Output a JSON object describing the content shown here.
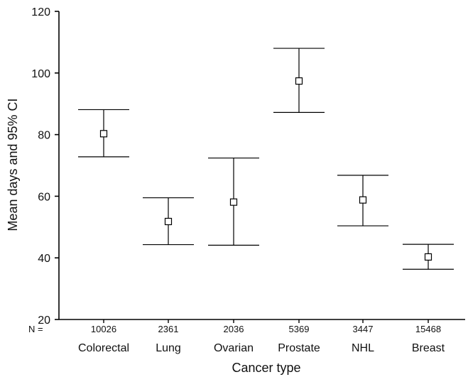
{
  "chart_data": {
    "type": "errorbar",
    "xlabel": "Cancer type",
    "ylabel": "Mean days and 95% CI",
    "ylim": [
      20,
      120
    ],
    "yticks": [
      20,
      40,
      60,
      80,
      100,
      120
    ],
    "n_prefix": "N =",
    "categories": [
      "Colorectal",
      "Lung",
      "Ovarian",
      "Prostate",
      "NHL",
      "Breast"
    ],
    "n_values": [
      "10026",
      "2361",
      "2036",
      "5369",
      "3447",
      "15468"
    ],
    "mean": [
      80.3,
      51.8,
      58.1,
      97.4,
      58.8,
      40.3
    ],
    "ci_lower": [
      72.8,
      44.3,
      44.1,
      87.2,
      50.4,
      36.3
    ],
    "ci_upper": [
      88.1,
      59.5,
      72.4,
      108.0,
      66.8,
      44.4
    ],
    "grid": false,
    "marker": "open-square",
    "line_color": "#000000"
  }
}
